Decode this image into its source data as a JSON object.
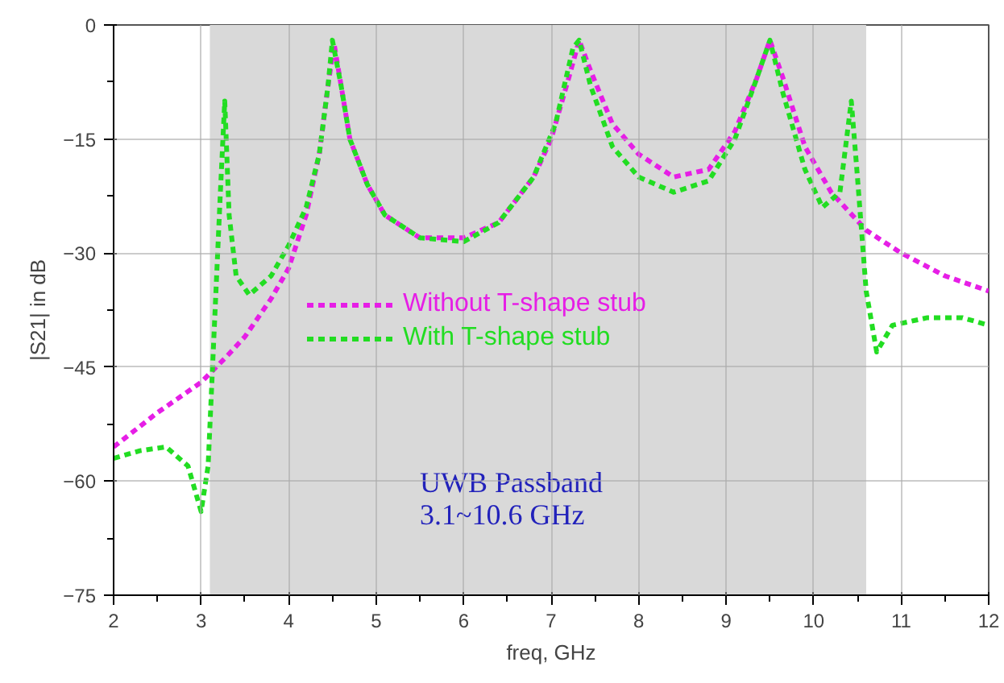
{
  "chart_data": {
    "type": "line",
    "xlabel": "freq, GHz",
    "ylabel": "|S21| in dB",
    "xlim": [
      2,
      12
    ],
    "ylim": [
      -75,
      0
    ],
    "xticks": [
      2,
      3,
      4,
      5,
      6,
      7,
      8,
      9,
      10,
      11,
      12
    ],
    "yticks": [
      -75,
      -60,
      -45,
      -30,
      -15,
      0
    ],
    "grid": true,
    "legend": "center",
    "line_style": "dashed",
    "marker": "none",
    "bands": [
      {
        "axis": "x",
        "from": 3.1,
        "to": 10.6,
        "color": "#d9d9d9"
      }
    ],
    "annotations": [
      "UWB Passband\n3.1~10.6 GHz"
    ],
    "series": [
      {
        "name": "Without T-shape stub",
        "color": "#e61ee6",
        "x": [
          2,
          2.5,
          3,
          3.3,
          3.5,
          3.8,
          4,
          4.2,
          4.35,
          4.45,
          4.52,
          4.6,
          4.7,
          4.9,
          5.1,
          5.5,
          6,
          6.4,
          6.8,
          7.0,
          7.2,
          7.32,
          7.45,
          7.7,
          8,
          8.4,
          8.8,
          9.1,
          9.35,
          9.5,
          9.65,
          9.9,
          10.2,
          10.6,
          11,
          11.5,
          12
        ],
        "values": [
          -55.5,
          -51,
          -47,
          -43.5,
          -41,
          -36,
          -32,
          -25,
          -17,
          -8,
          -2.5,
          -8,
          -15,
          -21,
          -25,
          -28,
          -28,
          -26,
          -20,
          -15,
          -7,
          -2,
          -6,
          -13,
          -17,
          -20,
          -19,
          -14,
          -7,
          -2,
          -7,
          -16,
          -22,
          -27,
          -30,
          -33,
          -35
        ]
      },
      {
        "name": "With T-shape stub",
        "color": "#22dd22",
        "x": [
          2,
          2.3,
          2.6,
          2.85,
          3.0,
          3.08,
          3.15,
          3.22,
          3.27,
          3.32,
          3.4,
          3.55,
          3.8,
          4.0,
          4.2,
          4.35,
          4.45,
          4.5,
          4.6,
          4.7,
          4.9,
          5.1,
          5.5,
          6,
          6.4,
          6.8,
          7.05,
          7.25,
          7.32,
          7.45,
          7.7,
          8,
          8.4,
          8.8,
          9.1,
          9.35,
          9.5,
          9.65,
          9.9,
          10.1,
          10.3,
          10.43,
          10.5,
          10.6,
          10.72,
          10.9,
          11.3,
          11.7,
          12
        ],
        "values": [
          -57,
          -56,
          -55.5,
          -58,
          -64,
          -58,
          -40,
          -22,
          -10,
          -25,
          -33,
          -35.5,
          -33,
          -29,
          -24,
          -17,
          -8,
          -2,
          -8,
          -15,
          -21,
          -25,
          -28,
          -28.5,
          -26,
          -20,
          -13,
          -3,
          -2,
          -8,
          -16,
          -20,
          -22,
          -20.5,
          -15,
          -7,
          -2,
          -9,
          -19,
          -24,
          -22,
          -10,
          -20,
          -35,
          -43,
          -39.5,
          -38.5,
          -38.5,
          -39.5
        ]
      }
    ]
  }
}
